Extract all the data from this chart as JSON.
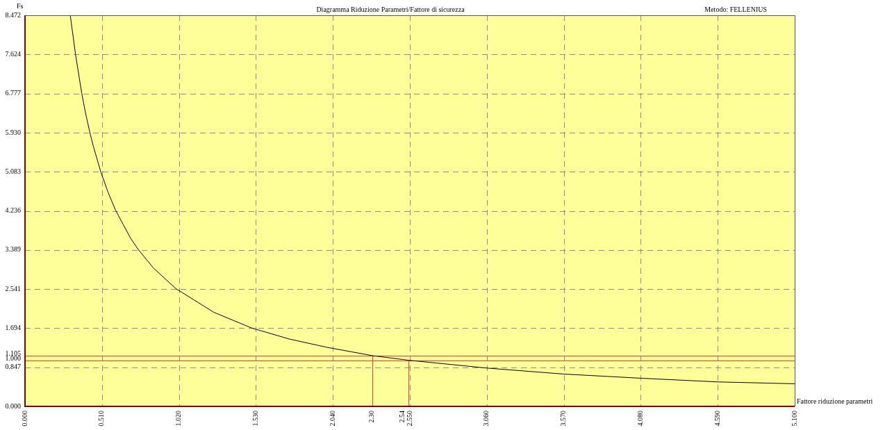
{
  "chart_data": {
    "type": "line",
    "title": "Diagramma Riduzione Parametri/Fattore di sicurezza",
    "xlabel": "Fattore riduzione parametri",
    "ylabel": "Fs",
    "annotations": [
      "Metodo: FELLENIUS"
    ],
    "series": [
      {
        "color": "#000000",
        "x": [
          0.3,
          0.335,
          0.376,
          0.4,
          0.43,
          0.45,
          0.502,
          0.55,
          0.6,
          0.7,
          0.75,
          0.85,
          1.0,
          1.25,
          1.5,
          1.75,
          2.0,
          2.3,
          2.54,
          3.06,
          3.57,
          4.08,
          4.59,
          5.1
        ],
        "values": [
          8.47,
          7.62,
          6.78,
          6.37,
          5.93,
          5.67,
          5.08,
          4.64,
          4.25,
          3.64,
          3.4,
          3.0,
          2.55,
          2.04,
          1.7,
          1.46,
          1.28,
          1.1,
          1.0,
          0.83,
          0.7,
          0.61,
          0.53,
          0.49
        ]
      }
    ],
    "xlim": [
      0,
      5.1
    ],
    "ylim": [
      0,
      8.472
    ],
    "xticks": [
      {
        "value": 0,
        "label": "0.000"
      },
      {
        "value": 0.51,
        "label": "0.510"
      },
      {
        "value": 1.02,
        "label": "1.020"
      },
      {
        "value": 1.53,
        "label": "1.530"
      },
      {
        "value": 2.04,
        "label": "2.040"
      },
      {
        "value": 2.55,
        "label": "2.550"
      },
      {
        "value": 3.06,
        "label": "3.060"
      },
      {
        "value": 3.57,
        "label": "3.570"
      },
      {
        "value": 4.08,
        "label": "4.080"
      },
      {
        "value": 4.59,
        "label": "4.590"
      },
      {
        "value": 5.1,
        "label": "5.100"
      }
    ],
    "yticks": [
      {
        "value": 0,
        "label": "0.000"
      },
      {
        "value": 0.847,
        "label": "0.847"
      },
      {
        "value": 1.694,
        "label": "1.694"
      },
      {
        "value": 2.541,
        "label": "2.541"
      },
      {
        "value": 3.389,
        "label": "3.389"
      },
      {
        "value": 4.236,
        "label": "4.236"
      },
      {
        "value": 5.083,
        "label": "5.083"
      },
      {
        "value": 5.93,
        "label": "5.930"
      },
      {
        "value": 6.777,
        "label": "6.777"
      },
      {
        "value": 7.624,
        "label": "7.624"
      },
      {
        "value": 8.472,
        "label": "8.472"
      }
    ],
    "ref_lines": [
      {
        "axis": "y",
        "value": 1.105,
        "label": "1.105",
        "color": "#ff3b2f"
      },
      {
        "axis": "y",
        "value": 1.0,
        "label": "1.000",
        "color": "#ff3b2f"
      },
      {
        "axis": "x",
        "value": 2.3,
        "label": "2.30",
        "color": "#ff3b2f"
      },
      {
        "axis": "x",
        "value": 2.54,
        "label": "2.54",
        "color": "#ff3b2f"
      }
    ],
    "grid": true,
    "marker": "none",
    "line_style": "solid"
  }
}
